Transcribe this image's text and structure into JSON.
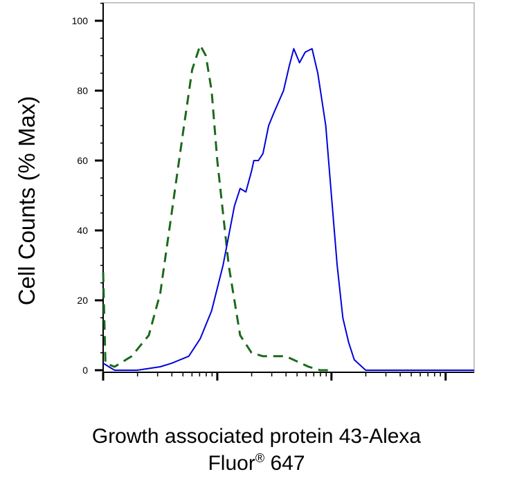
{
  "chart_data": {
    "type": "line",
    "title": "",
    "ylabel": "Cell Counts (% Max)",
    "xlabel_line1": "Growth associated protein 43-Alexa",
    "xlabel_line2_main": "Fluor",
    "xlabel_line2_sup": "®",
    "xlabel_line2_rest": " 647",
    "ylim": [
      0,
      105
    ],
    "xlim": [
      0,
      3.25
    ],
    "x_scale": "log (decades 0–3+)",
    "y_ticks": [
      {
        "value": 0,
        "label": "0"
      },
      {
        "value": 20,
        "label": "20"
      },
      {
        "value": 40,
        "label": "40"
      },
      {
        "value": 60,
        "label": "60"
      },
      {
        "value": 80,
        "label": "80"
      },
      {
        "value": 100,
        "label": "100"
      }
    ],
    "x_major_ticks": [
      0,
      1,
      2,
      3
    ],
    "grid": false,
    "legend": "none",
    "series": [
      {
        "style": "dashed",
        "color": "#1a6a1a",
        "x": [
          0.0,
          0.02,
          0.1,
          0.25,
          0.4,
          0.5,
          0.6,
          0.7,
          0.78,
          0.85,
          0.9,
          0.95,
          1.0,
          1.1,
          1.2,
          1.3,
          1.4,
          1.6,
          1.8,
          1.9,
          2.0
        ],
        "y": [
          28,
          2,
          1,
          4,
          10,
          22,
          45,
          68,
          86,
          93,
          90,
          80,
          60,
          30,
          10,
          5,
          4,
          4,
          1,
          0,
          0
        ]
      },
      {
        "style": "solid",
        "color": "#0000dd",
        "x": [
          0.0,
          0.05,
          0.1,
          0.3,
          0.5,
          0.6,
          0.75,
          0.85,
          0.95,
          1.05,
          1.15,
          1.2,
          1.25,
          1.3,
          1.32,
          1.36,
          1.4,
          1.45,
          1.5,
          1.58,
          1.63,
          1.67,
          1.72,
          1.77,
          1.83,
          1.88,
          1.95,
          2.0,
          2.05,
          2.1,
          2.15,
          2.2,
          2.3,
          2.4,
          3.25
        ],
        "y": [
          2,
          1,
          0,
          0,
          1,
          2,
          4,
          9,
          17,
          30,
          47,
          52,
          51,
          57,
          60,
          60,
          62,
          70,
          74,
          80,
          87,
          92,
          88,
          91,
          92,
          85,
          70,
          50,
          30,
          15,
          8,
          3,
          0,
          0,
          0
        ]
      }
    ]
  }
}
